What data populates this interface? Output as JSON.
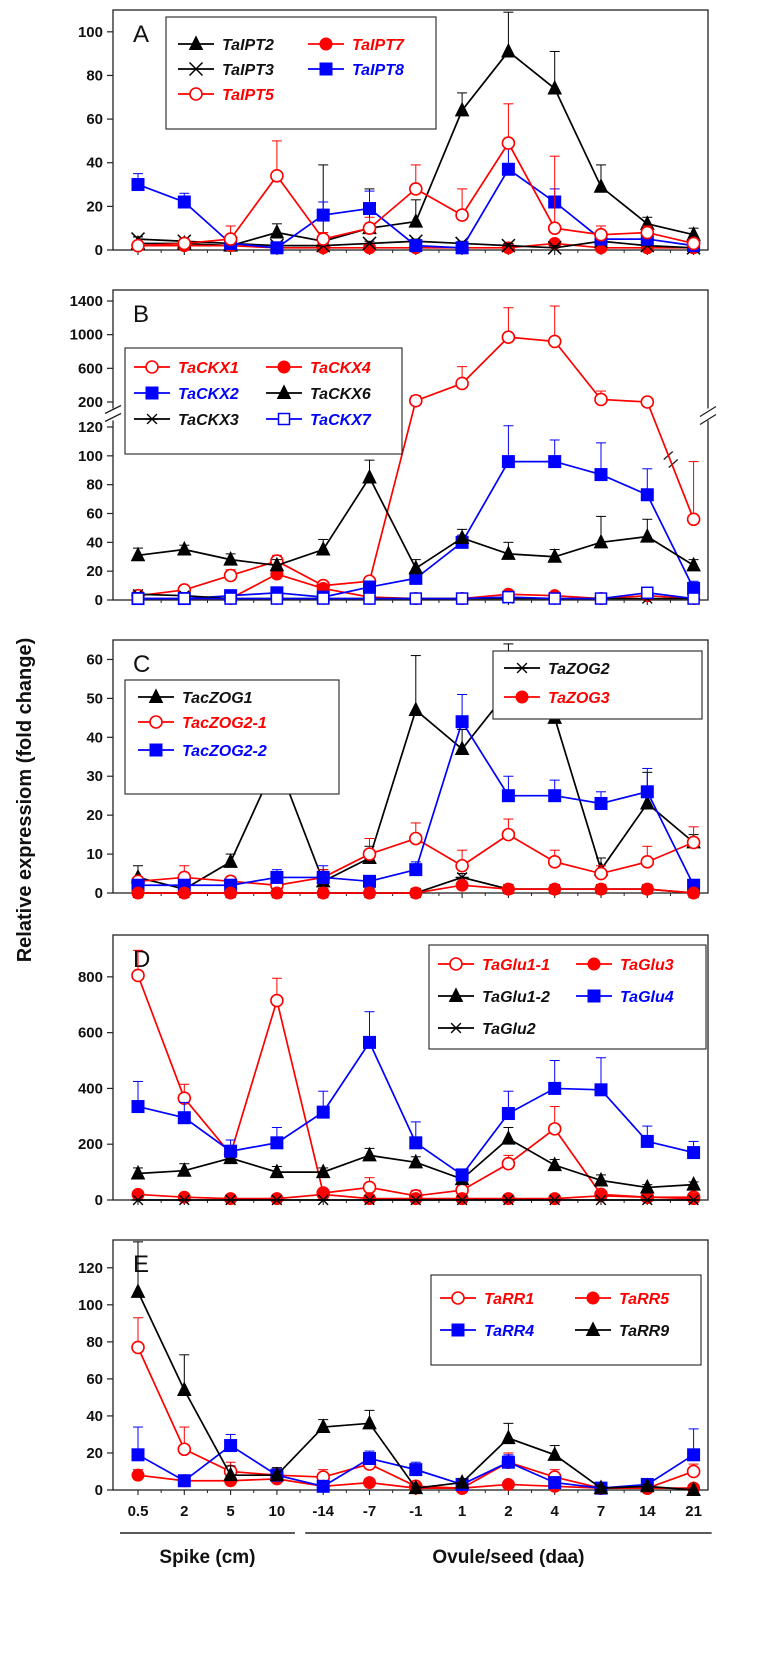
{
  "figure": {
    "ylabel": "Relative expressiom (fold change)",
    "x_categories": [
      "0.5",
      "2",
      "5",
      "10",
      "-14",
      "-7",
      "-1",
      "1",
      "2",
      "4",
      "7",
      "14",
      "21"
    ],
    "x_groups": [
      {
        "label": "Spike (cm)",
        "from": 0,
        "to": 3
      },
      {
        "label": "Ovule/seed (daa)",
        "from": 4,
        "to": 12
      }
    ]
  },
  "chart_data": [
    {
      "panel": "A",
      "type": "line",
      "categories": [
        "0.5",
        "2",
        "5",
        "10",
        "-14",
        "-7",
        "-1",
        "1",
        "2",
        "4",
        "7",
        "14",
        "21"
      ],
      "ylim": [
        0,
        110
      ],
      "yticks": [
        0,
        20,
        40,
        60,
        80,
        100
      ],
      "legend": {
        "placement": "top-left"
      },
      "series": [
        {
          "name": "TaIPT2",
          "color": "#000000",
          "marker": "triangle-filled",
          "values": [
            3,
            3,
            2,
            8,
            4,
            10,
            13,
            64,
            91,
            74,
            29,
            12,
            7
          ],
          "errors": [
            3,
            2,
            2,
            4,
            35,
            18,
            10,
            8,
            18,
            17,
            10,
            3,
            3
          ]
        },
        {
          "name": "TaIPT7",
          "color": "#ff0000",
          "marker": "circle-filled",
          "values": [
            2,
            2,
            2,
            1,
            1,
            1,
            1,
            1,
            1,
            3,
            1,
            1,
            1
          ],
          "errors": [
            1,
            1,
            1,
            1,
            1,
            1,
            1,
            1,
            1,
            1,
            1,
            1,
            1
          ]
        },
        {
          "name": "TaIPT3",
          "color": "#000000",
          "marker": "x",
          "values": [
            5,
            4,
            3,
            2,
            2,
            3,
            4,
            3,
            2,
            1,
            4,
            2,
            1
          ],
          "errors": [
            1,
            1,
            1,
            1,
            1,
            1,
            1,
            1,
            1,
            1,
            1,
            1,
            1
          ]
        },
        {
          "name": "TaIPT8",
          "color": "#0000ff",
          "marker": "square-filled",
          "values": [
            30,
            22,
            3,
            1,
            16,
            19,
            2,
            1,
            37,
            22,
            5,
            5,
            2
          ],
          "errors": [
            5,
            4,
            2,
            1,
            6,
            8,
            2,
            1,
            12,
            6,
            3,
            2,
            1
          ]
        },
        {
          "name": "TaIPT5",
          "color": "#ff0000",
          "marker": "circle-open",
          "values": [
            2,
            3,
            5,
            34,
            5,
            10,
            28,
            16,
            49,
            10,
            7,
            8,
            3
          ],
          "errors": [
            1,
            1,
            6,
            16,
            3,
            5,
            11,
            12,
            18,
            33,
            4,
            3,
            2
          ]
        }
      ]
    },
    {
      "panel": "B",
      "type": "line",
      "categories": [
        "0.5",
        "2",
        "5",
        "10",
        "-14",
        "-7",
        "-1",
        "1",
        "2",
        "4",
        "7",
        "14",
        "21"
      ],
      "yaxis": {
        "scale": "broken",
        "lower_range": [
          0,
          120
        ],
        "upper_values": [
          200,
          600,
          1000,
          1400
        ]
      },
      "yticks": [
        "0",
        "20",
        "40",
        "60",
        "80",
        "100",
        "120",
        "200",
        "600",
        "1000",
        "1400"
      ],
      "legend": {
        "placement": "left"
      },
      "series": [
        {
          "name": "TaCKX1",
          "color": "#ff0000",
          "marker": "circle-open",
          "values": [
            3,
            7,
            17,
            27,
            10,
            13,
            215,
            420,
            970,
            920,
            230,
            200,
            56
          ],
          "errors": [
            2,
            3,
            4,
            4,
            3,
            3,
            60,
            200,
            350,
            420,
            100,
            50,
            40
          ]
        },
        {
          "name": "TaCKX4",
          "color": "#ff0000",
          "marker": "circle-filled",
          "values": [
            1,
            1,
            1,
            18,
            8,
            2,
            1,
            1,
            4,
            3,
            1,
            3,
            1
          ],
          "errors": [
            1,
            1,
            1,
            4,
            3,
            1,
            1,
            1,
            1,
            1,
            1,
            1,
            1
          ]
        },
        {
          "name": "TaCKX2",
          "color": "#0000ff",
          "marker": "square-filled",
          "values": [
            1,
            1,
            3,
            5,
            2,
            9,
            15,
            40,
            96,
            96,
            87,
            73,
            8
          ],
          "errors": [
            1,
            1,
            1,
            1,
            1,
            3,
            5,
            5,
            28,
            15,
            22,
            18,
            5
          ]
        },
        {
          "name": "TaCKX6",
          "color": "#000000",
          "marker": "triangle-filled",
          "values": [
            31,
            35,
            28,
            24,
            35,
            85,
            22,
            43,
            32,
            30,
            40,
            44,
            24
          ],
          "errors": [
            5,
            3,
            4,
            4,
            7,
            12,
            6,
            6,
            8,
            5,
            18,
            12,
            4
          ]
        },
        {
          "name": "TaCKX3",
          "color": "#000000",
          "marker": "asterisk",
          "values": [
            4,
            3,
            1,
            1,
            1,
            1,
            1,
            1,
            1,
            1,
            1,
            1,
            1
          ],
          "errors": [
            1,
            1,
            1,
            1,
            1,
            1,
            1,
            1,
            1,
            1,
            1,
            1,
            1
          ]
        },
        {
          "name": "TaCKX7",
          "color": "#0000ff",
          "marker": "square-open",
          "values": [
            1,
            1,
            1,
            1,
            1,
            1,
            1,
            1,
            2,
            1,
            1,
            5,
            1
          ],
          "errors": [
            1,
            1,
            1,
            1,
            1,
            1,
            1,
            1,
            1,
            1,
            1,
            1,
            1
          ]
        }
      ]
    },
    {
      "panel": "C",
      "type": "line",
      "categories": [
        "0.5",
        "2",
        "5",
        "10",
        "-14",
        "-7",
        "-1",
        "1",
        "2",
        "4",
        "7",
        "14",
        "21"
      ],
      "ylim": [
        0,
        65
      ],
      "yticks": [
        0,
        10,
        20,
        30,
        40,
        50,
        60
      ],
      "legend": {
        "placement": "left and top-right"
      },
      "series": [
        {
          "name": "TacZOG1",
          "color": "#000000",
          "marker": "triangle-filled",
          "values": [
            4,
            1,
            8,
            34,
            3,
            9,
            47,
            37,
            52,
            45,
            6,
            23,
            13
          ],
          "errors": [
            3,
            1,
            2,
            10,
            3,
            3,
            14,
            5,
            12,
            13,
            3,
            8,
            2
          ]
        },
        {
          "name": "TacZOG2-1",
          "color": "#ff0000",
          "marker": "circle-open",
          "values": [
            3,
            4,
            3,
            2,
            4,
            10,
            14,
            7,
            15,
            8,
            5,
            8,
            13
          ],
          "errors": [
            1,
            3,
            1,
            1,
            2,
            4,
            4,
            4,
            4,
            3,
            2,
            4,
            4
          ]
        },
        {
          "name": "TacZOG2-2",
          "color": "#0000ff",
          "marker": "square-filled",
          "values": [
            2,
            2,
            2,
            4,
            4,
            3,
            6,
            44,
            25,
            25,
            23,
            26,
            2
          ],
          "errors": [
            1,
            1,
            1,
            2,
            3,
            1,
            2,
            7,
            5,
            4,
            3,
            6,
            1
          ]
        },
        {
          "name": "TaZOG2",
          "color": "#000000",
          "marker": "asterisk",
          "values": [
            0,
            0,
            0,
            0,
            0,
            0,
            0,
            4,
            1,
            1,
            1,
            1,
            0
          ],
          "errors": [
            0,
            0,
            0,
            0,
            0,
            0,
            0,
            1,
            1,
            1,
            1,
            1,
            0
          ]
        },
        {
          "name": "TaZOG3",
          "color": "#ff0000",
          "marker": "circle-filled",
          "values": [
            0,
            0,
            0,
            0,
            0,
            0,
            0,
            2,
            1,
            1,
            1,
            1,
            0
          ],
          "errors": [
            0,
            0,
            0,
            0,
            0,
            0,
            0,
            1,
            1,
            1,
            1,
            1,
            0
          ]
        }
      ]
    },
    {
      "panel": "D",
      "type": "line",
      "categories": [
        "0.5",
        "2",
        "5",
        "10",
        "-14",
        "-7",
        "-1",
        "1",
        "2",
        "4",
        "7",
        "14",
        "21"
      ],
      "ylim": [
        0,
        950
      ],
      "yticks": [
        0,
        200,
        400,
        600,
        800
      ],
      "legend": {
        "placement": "top-right"
      },
      "series": [
        {
          "name": "TaGlu1-1",
          "color": "#ff0000",
          "marker": "circle-open",
          "values": [
            805,
            365,
            165,
            715,
            25,
            45,
            15,
            35,
            130,
            255,
            20,
            10,
            10
          ],
          "errors": [
            90,
            50,
            30,
            80,
            10,
            35,
            20,
            15,
            30,
            80,
            10,
            5,
            5
          ]
        },
        {
          "name": "TaGlu3",
          "color": "#ff0000",
          "marker": "circle-filled",
          "values": [
            20,
            10,
            5,
            5,
            20,
            5,
            5,
            5,
            5,
            5,
            15,
            10,
            5
          ],
          "errors": [
            5,
            5,
            3,
            3,
            5,
            3,
            3,
            3,
            3,
            3,
            5,
            5,
            3
          ]
        },
        {
          "name": "TaGlu1-2",
          "color": "#000000",
          "marker": "triangle-filled",
          "values": [
            95,
            105,
            150,
            100,
            100,
            160,
            135,
            75,
            220,
            125,
            70,
            45,
            55
          ],
          "errors": [
            20,
            25,
            20,
            20,
            15,
            25,
            20,
            15,
            40,
            20,
            20,
            10,
            10
          ]
        },
        {
          "name": "TaGlu4",
          "color": "#0000ff",
          "marker": "square-filled",
          "values": [
            335,
            295,
            175,
            205,
            315,
            565,
            205,
            90,
            310,
            400,
            395,
            210,
            170
          ],
          "errors": [
            90,
            55,
            40,
            55,
            75,
            110,
            75,
            20,
            80,
            100,
            115,
            55,
            40
          ]
        },
        {
          "name": "TaGlu2",
          "color": "#000000",
          "marker": "asterisk",
          "values": [
            0,
            0,
            0,
            0,
            0,
            0,
            0,
            0,
            0,
            0,
            0,
            0,
            0
          ],
          "errors": [
            0,
            0,
            0,
            0,
            0,
            0,
            0,
            0,
            0,
            0,
            0,
            0,
            0
          ]
        }
      ]
    },
    {
      "panel": "E",
      "type": "line",
      "categories": [
        "0.5",
        "2",
        "5",
        "10",
        "-14",
        "-7",
        "-1",
        "1",
        "2",
        "4",
        "7",
        "14",
        "21"
      ],
      "ylim": [
        0,
        135
      ],
      "yticks": [
        0,
        20,
        40,
        60,
        80,
        100,
        120
      ],
      "legend": {
        "placement": "top-right"
      },
      "series": [
        {
          "name": "TaRR1",
          "color": "#ff0000",
          "marker": "circle-open",
          "values": [
            77,
            22,
            10,
            8,
            7,
            14,
            2,
            1,
            15,
            7,
            1,
            1,
            10
          ],
          "errors": [
            16,
            12,
            5,
            4,
            4,
            5,
            2,
            1,
            5,
            4,
            1,
            1,
            4
          ]
        },
        {
          "name": "TaRR5",
          "color": "#ff0000",
          "marker": "circle-filled",
          "values": [
            8,
            5,
            5,
            6,
            2,
            4,
            1,
            1,
            3,
            2,
            1,
            1,
            1
          ],
          "errors": [
            3,
            2,
            2,
            2,
            1,
            2,
            1,
            1,
            1,
            1,
            1,
            1,
            1
          ]
        },
        {
          "name": "TaRR4",
          "color": "#0000ff",
          "marker": "square-filled",
          "values": [
            19,
            5,
            24,
            8,
            2,
            17,
            11,
            3,
            15,
            4,
            1,
            3,
            19
          ],
          "errors": [
            15,
            2,
            6,
            4,
            2,
            4,
            4,
            2,
            4,
            2,
            1,
            2,
            14
          ]
        },
        {
          "name": "TaRR9",
          "color": "#000000",
          "marker": "triangle-filled",
          "values": [
            107,
            54,
            8,
            8,
            34,
            36,
            1,
            4,
            28,
            19,
            1,
            2,
            0
          ],
          "errors": [
            27,
            19,
            5,
            4,
            4,
            7,
            1,
            2,
            8,
            5,
            1,
            1,
            0
          ]
        }
      ]
    }
  ]
}
